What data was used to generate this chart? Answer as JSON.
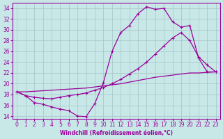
{
  "xlabel": "Windchill (Refroidissement éolien,°C)",
  "bg_color": "#c8e8e8",
  "line_color": "#990099",
  "grid_color": "#a8c8cc",
  "xlim": [
    -0.5,
    23.5
  ],
  "ylim": [
    13.5,
    35.0
  ],
  "yticks": [
    14,
    16,
    18,
    20,
    22,
    24,
    26,
    28,
    30,
    32,
    34
  ],
  "xticks": [
    0,
    1,
    2,
    3,
    4,
    5,
    6,
    7,
    8,
    9,
    10,
    11,
    12,
    13,
    14,
    15,
    16,
    17,
    18,
    19,
    20,
    21,
    22,
    23
  ],
  "series1_x": [
    0,
    1,
    2,
    3,
    4,
    5,
    6,
    7,
    8,
    9,
    10,
    11,
    12,
    13,
    14,
    15,
    16,
    17,
    18,
    19,
    20,
    21,
    22,
    23
  ],
  "series1_y": [
    18.5,
    17.8,
    16.5,
    16.2,
    15.7,
    15.3,
    15.0,
    14.0,
    13.9,
    16.3,
    20.2,
    26.0,
    29.5,
    30.8,
    33.0,
    34.3,
    33.8,
    34.0,
    31.5,
    30.5,
    30.8,
    24.8,
    22.2,
    22.2
  ],
  "series2_x": [
    0,
    1,
    2,
    3,
    4,
    5,
    6,
    7,
    8,
    9,
    10,
    11,
    12,
    13,
    14,
    15,
    16,
    17,
    18,
    19,
    20,
    21,
    22,
    23
  ],
  "series2_y": [
    18.5,
    17.8,
    17.5,
    17.3,
    17.2,
    17.5,
    17.8,
    18.0,
    18.3,
    18.8,
    19.3,
    20.0,
    20.8,
    21.8,
    22.8,
    24.0,
    25.5,
    27.0,
    28.5,
    29.5,
    28.0,
    25.0,
    23.5,
    22.2
  ],
  "series3_x": [
    0,
    1,
    2,
    3,
    4,
    5,
    6,
    7,
    8,
    9,
    10,
    11,
    12,
    13,
    14,
    15,
    16,
    17,
    18,
    19,
    20,
    21,
    22,
    23
  ],
  "series3_y": [
    18.5,
    18.5,
    18.6,
    18.7,
    18.8,
    18.9,
    19.0,
    19.1,
    19.2,
    19.4,
    19.6,
    19.8,
    20.0,
    20.3,
    20.6,
    20.9,
    21.2,
    21.4,
    21.6,
    21.8,
    22.0,
    22.0,
    22.1,
    22.2
  ]
}
